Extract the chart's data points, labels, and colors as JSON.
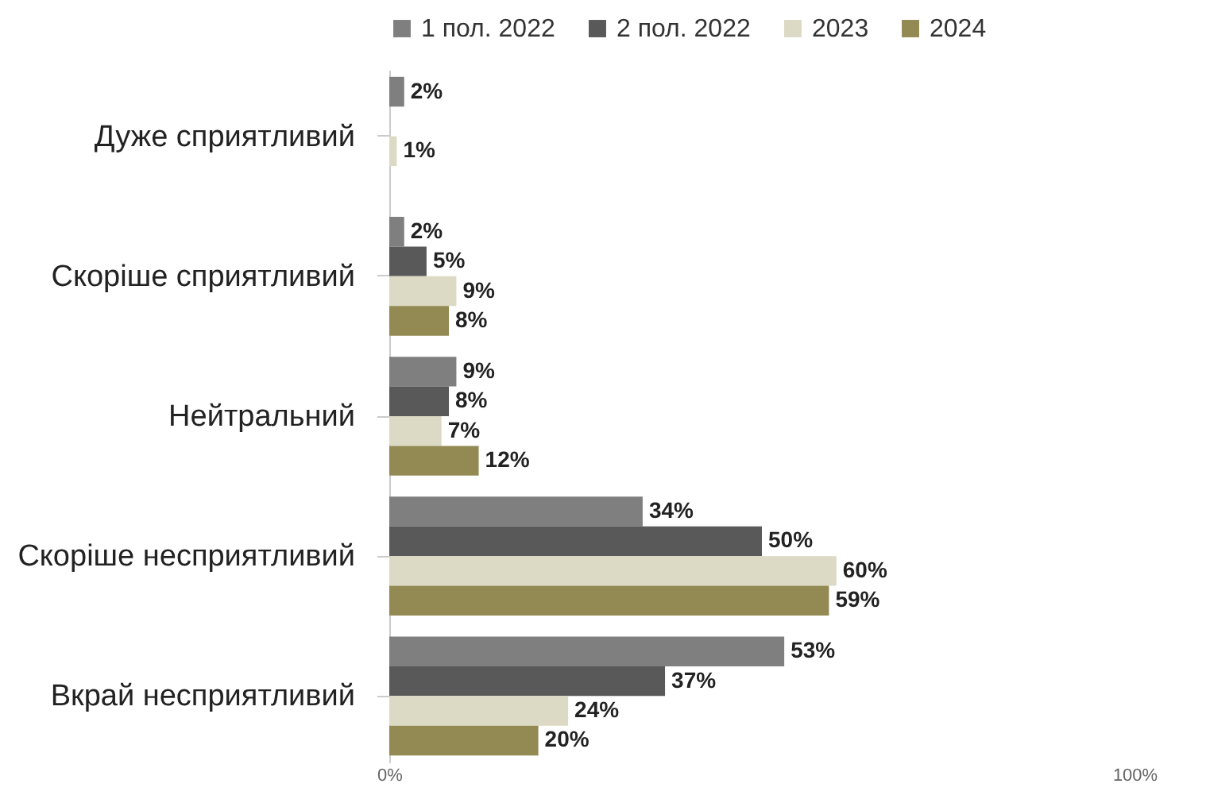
{
  "chart_data": {
    "type": "bar",
    "orientation": "horizontal",
    "legend": "top",
    "categories": [
      "Дуже сприятливий",
      "Скоріше сприятливий",
      "Нейтральний",
      "Скоріше несприятливий",
      "Вкрай несприятливий"
    ],
    "xlim": [
      0,
      100
    ],
    "xticks": [
      {
        "value": 0,
        "label": "0%"
      },
      {
        "value": 100,
        "label": "100%"
      }
    ],
    "series": [
      {
        "name": "1 пол. 2022",
        "color": "#7f7f7f",
        "values": [
          2,
          2,
          9,
          34,
          53
        ],
        "value_labels": [
          "2%",
          "2%",
          "9%",
          "34%",
          "53%"
        ]
      },
      {
        "name": "2 пол. 2022",
        "color": "#595959",
        "values": [
          null,
          5,
          8,
          50,
          37
        ],
        "value_labels": [
          null,
          "5%",
          "8%",
          "50%",
          "37%"
        ]
      },
      {
        "name": "2023",
        "color": "#dcd9c4",
        "values": [
          1,
          9,
          7,
          60,
          24
        ],
        "value_labels": [
          "1%",
          "9%",
          "7%",
          "60%",
          "24%"
        ]
      },
      {
        "name": "2024",
        "color": "#938953",
        "values": [
          null,
          8,
          12,
          59,
          20
        ],
        "value_labels": [
          null,
          "8%",
          "12%",
          "59%",
          "20%"
        ]
      }
    ]
  }
}
